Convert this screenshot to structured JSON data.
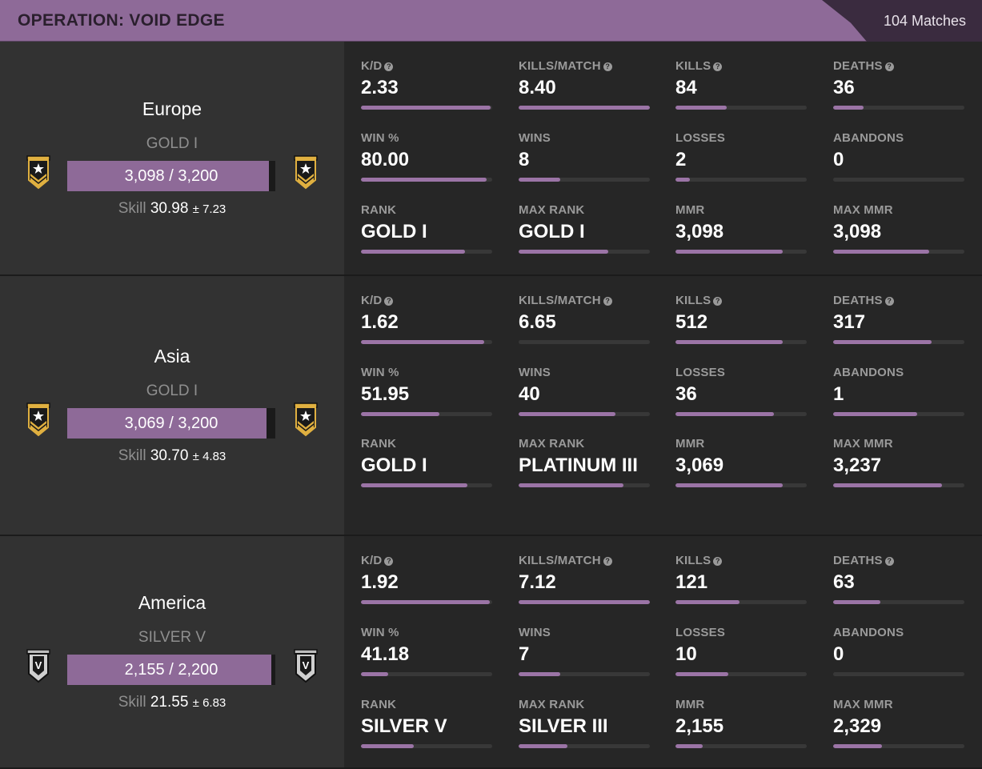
{
  "header": {
    "title": "OPERATION: VOID EDGE",
    "matches": "104 Matches",
    "accent": "#8e6a98"
  },
  "regions": [
    {
      "name": "Europe",
      "rank": "GOLD I",
      "progress_text": "3,098 / 3,200",
      "progress": 0.968,
      "skill_label": "Skill",
      "skill": "30.98",
      "skill_dev": "± 7.23",
      "badge": "gold-rank-icon",
      "stats": [
        {
          "label": "K/D",
          "value": "2.33",
          "help": true,
          "fill": 0.99
        },
        {
          "label": "KILLS/MATCH",
          "value": "8.40",
          "help": true,
          "fill": 1.0
        },
        {
          "label": "KILLS",
          "value": "84",
          "help": true,
          "fill": 0.39
        },
        {
          "label": "DEATHS",
          "value": "36",
          "help": true,
          "fill": 0.23
        },
        {
          "label": "WIN %",
          "value": "80.00",
          "help": false,
          "fill": 0.96
        },
        {
          "label": "WINS",
          "value": "8",
          "help": false,
          "fill": 0.32
        },
        {
          "label": "LOSSES",
          "value": "2",
          "help": false,
          "fill": 0.11
        },
        {
          "label": "ABANDONS",
          "value": "0",
          "help": false,
          "fill": 0.0
        },
        {
          "label": "RANK",
          "value": "GOLD I",
          "help": false,
          "fill": 0.79
        },
        {
          "label": "MAX RANK",
          "value": "GOLD I",
          "help": false,
          "fill": 0.68
        },
        {
          "label": "MMR",
          "value": "3,098",
          "help": false,
          "fill": 0.82
        },
        {
          "label": "MAX MMR",
          "value": "3,098",
          "help": false,
          "fill": 0.73
        }
      ]
    },
    {
      "name": "Asia",
      "rank": "GOLD I",
      "progress_text": "3,069 / 3,200",
      "progress": 0.958,
      "skill_label": "Skill",
      "skill": "30.70",
      "skill_dev": "± 4.83",
      "badge": "gold-rank-icon",
      "stats": [
        {
          "label": "K/D",
          "value": "1.62",
          "help": true,
          "fill": 0.94
        },
        {
          "label": "KILLS/MATCH",
          "value": "6.65",
          "help": true,
          "fill": 0.0
        },
        {
          "label": "KILLS",
          "value": "512",
          "help": true,
          "fill": 0.82
        },
        {
          "label": "DEATHS",
          "value": "317",
          "help": true,
          "fill": 0.75
        },
        {
          "label": "WIN %",
          "value": "51.95",
          "help": false,
          "fill": 0.6
        },
        {
          "label": "WINS",
          "value": "40",
          "help": false,
          "fill": 0.74
        },
        {
          "label": "LOSSES",
          "value": "36",
          "help": false,
          "fill": 0.75
        },
        {
          "label": "ABANDONS",
          "value": "1",
          "help": false,
          "fill": 0.64
        },
        {
          "label": "RANK",
          "value": "GOLD I",
          "help": false,
          "fill": 0.81
        },
        {
          "label": "MAX RANK",
          "value": "PLATINUM III",
          "help": false,
          "fill": 0.8
        },
        {
          "label": "MMR",
          "value": "3,069",
          "help": false,
          "fill": 0.82
        },
        {
          "label": "MAX MMR",
          "value": "3,237",
          "help": false,
          "fill": 0.83
        }
      ]
    },
    {
      "name": "America",
      "rank": "SILVER V",
      "progress_text": "2,155 / 2,200",
      "progress": 0.98,
      "skill_label": "Skill",
      "skill": "21.55",
      "skill_dev": "± 6.83",
      "badge": "silver-rank-icon",
      "stats": [
        {
          "label": "K/D",
          "value": "1.92",
          "help": true,
          "fill": 0.98
        },
        {
          "label": "KILLS/MATCH",
          "value": "7.12",
          "help": true,
          "fill": 1.0
        },
        {
          "label": "KILLS",
          "value": "121",
          "help": true,
          "fill": 0.49
        },
        {
          "label": "DEATHS",
          "value": "63",
          "help": true,
          "fill": 0.36
        },
        {
          "label": "WIN %",
          "value": "41.18",
          "help": false,
          "fill": 0.21
        },
        {
          "label": "WINS",
          "value": "7",
          "help": false,
          "fill": 0.32
        },
        {
          "label": "LOSSES",
          "value": "10",
          "help": false,
          "fill": 0.4
        },
        {
          "label": "ABANDONS",
          "value": "0",
          "help": false,
          "fill": 0.0
        },
        {
          "label": "RANK",
          "value": "SILVER V",
          "help": false,
          "fill": 0.4
        },
        {
          "label": "MAX RANK",
          "value": "SILVER III",
          "help": false,
          "fill": 0.37
        },
        {
          "label": "MMR",
          "value": "2,155",
          "help": false,
          "fill": 0.21
        },
        {
          "label": "MAX MMR",
          "value": "2,329",
          "help": false,
          "fill": 0.37
        }
      ]
    }
  ]
}
